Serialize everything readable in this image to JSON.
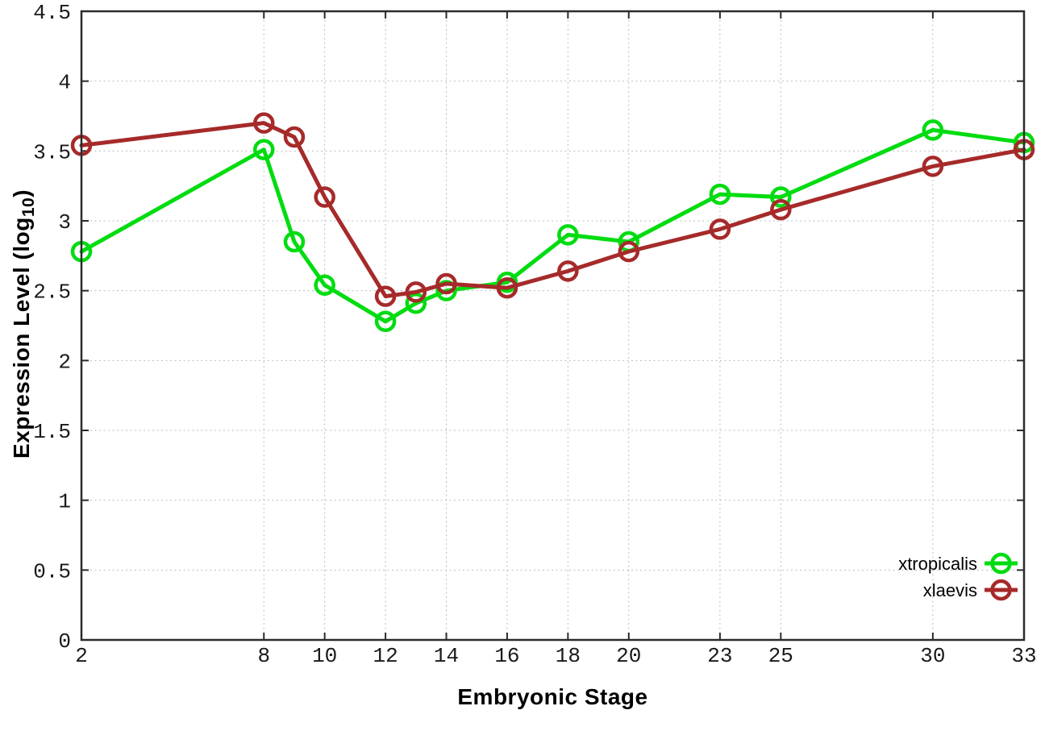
{
  "chart_data": {
    "type": "line",
    "title": "",
    "xlabel": "Embryonic Stage",
    "ylabel": "Expression Level (log10)",
    "ylabel_parts": {
      "base": "Expression Level (log",
      "sub": "10",
      "close": ")"
    },
    "x": [
      2,
      8,
      9,
      10,
      12,
      13,
      14,
      16,
      18,
      20,
      23,
      25,
      30,
      33
    ],
    "series": [
      {
        "name": "xtropicalis",
        "color": "#00dc10",
        "values": [
          2.78,
          3.51,
          2.85,
          2.54,
          2.28,
          2.41,
          2.5,
          2.56,
          2.9,
          2.85,
          3.19,
          3.17,
          3.65,
          3.56
        ]
      },
      {
        "name": "xlaevis",
        "color": "#a62a2a",
        "values": [
          3.54,
          3.7,
          3.6,
          3.17,
          2.46,
          2.49,
          2.55,
          2.52,
          2.64,
          2.78,
          2.94,
          3.08,
          3.39,
          3.51
        ]
      }
    ],
    "xlim": [
      2,
      33
    ],
    "ylim": [
      0,
      4.5
    ],
    "x_ticks": [
      2,
      8,
      10,
      12,
      14,
      16,
      18,
      20,
      23,
      25,
      30,
      33
    ],
    "y_ticks": [
      0,
      0.5,
      1,
      1.5,
      2,
      2.5,
      3,
      3.5,
      4,
      4.5
    ],
    "grid": true,
    "grid_style": "dotted",
    "marker": "open-circle",
    "legend_position": "bottom-right",
    "legend_entries": [
      "xtropicalis",
      "xlaevis"
    ]
  },
  "colors": {
    "background": "#ffffff",
    "frame": "#2b2b2b",
    "grid": "#b7bfc1",
    "tick_text": "#1a1a1a",
    "series_green": "#00dc10",
    "series_red": "#a62a2a"
  }
}
